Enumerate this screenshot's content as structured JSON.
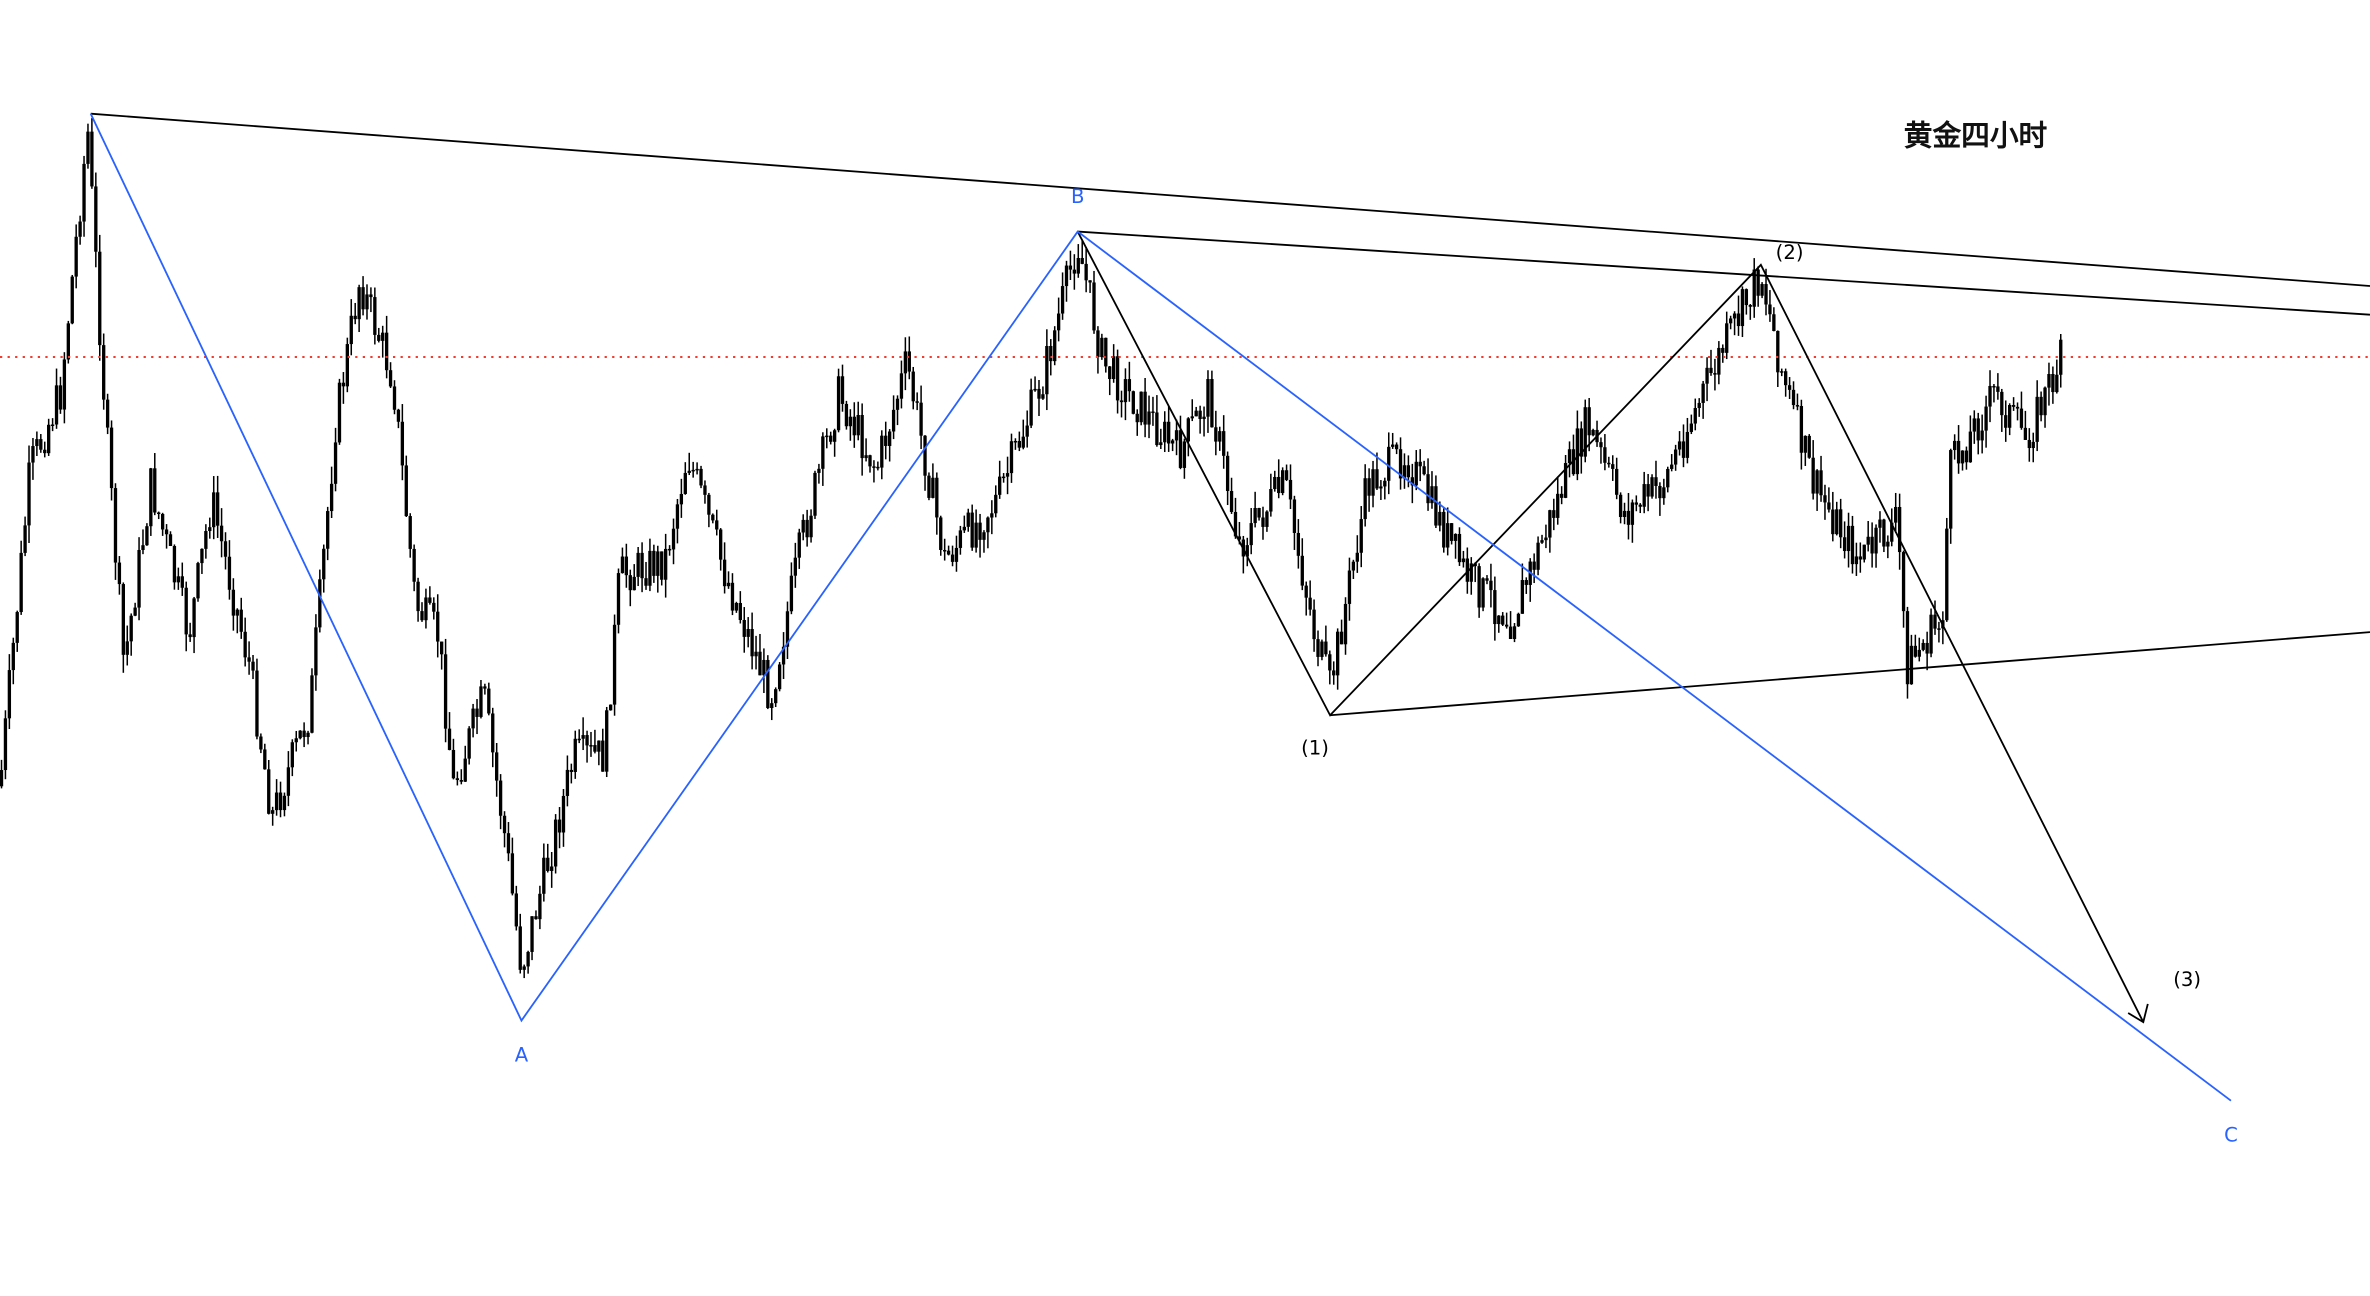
{
  "chart_data": {
    "type": "candlestick",
    "title": "黄金四小时",
    "instrument_color": "#000000",
    "current_price_line_color": "#f23c2f",
    "grid": false,
    "wave_labels_blue": [
      "A",
      "B",
      "C"
    ],
    "wave_labels_black": [
      "(1)",
      "(2)",
      "(3)"
    ],
    "blue_color": "#2962ff",
    "black_color": "#000000"
  }
}
